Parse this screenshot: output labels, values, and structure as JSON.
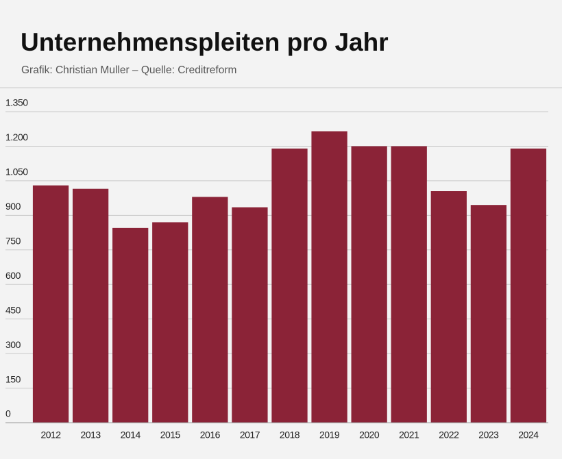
{
  "chart_data": {
    "type": "bar",
    "title": "Unternehmenspleiten pro Jahr",
    "subtitle": "Grafik: Christian Muller – Quelle: Creditreform",
    "categories": [
      "2012",
      "2013",
      "2014",
      "2015",
      "2016",
      "2017",
      "2018",
      "2019",
      "2020",
      "2021",
      "2022",
      "2023",
      "2024"
    ],
    "values": [
      1030,
      1015,
      845,
      870,
      980,
      935,
      1190,
      1265,
      1200,
      1200,
      1005,
      945,
      1190
    ],
    "color": "#8b2337",
    "ylim": [
      0,
      1350
    ],
    "yticks": [
      0,
      150,
      300,
      450,
      600,
      750,
      900,
      {
        "value": 1050,
        "label": "1.050"
      },
      {
        "value": 1200,
        "label": "1.200"
      },
      {
        "value": 1350,
        "label": "1.350"
      }
    ],
    "grid": true
  }
}
